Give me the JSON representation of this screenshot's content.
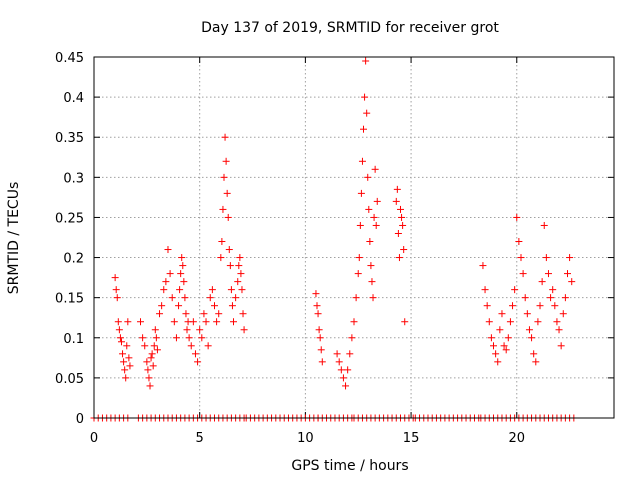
{
  "chart_data": {
    "type": "scatter",
    "title": "Day 137 of 2019, SRMTID for receiver grot",
    "xlabel": "GPS time / hours",
    "ylabel": "SRMTID / TECUs",
    "xlim": [
      0,
      24.6
    ],
    "ylim": [
      0,
      0.45
    ],
    "xticks": [
      0,
      5,
      10,
      15,
      20
    ],
    "yticks": [
      0,
      0.05,
      0.1,
      0.15,
      0.2,
      0.25,
      0.3,
      0.35,
      0.4,
      0.45
    ],
    "xtick_labels": [
      "0",
      "5",
      "10",
      "15",
      "20"
    ],
    "ytick_labels": [
      "0",
      "0.05",
      "0.1",
      "0.15",
      "0.2",
      "0.25",
      "0.3",
      "0.35",
      "0.4",
      "0.45"
    ],
    "grid": true,
    "marker": "+",
    "marker_color": "#ff0000",
    "series": [
      {
        "name": "SRMTID",
        "x": [
          1.0,
          1.05,
          1.1,
          1.15,
          1.2,
          1.25,
          1.3,
          1.35,
          1.4,
          1.45,
          1.5,
          1.55,
          1.6,
          1.65,
          1.7,
          2.2,
          2.3,
          2.4,
          2.5,
          2.55,
          2.6,
          2.65,
          2.7,
          2.75,
          2.8,
          2.85,
          2.9,
          2.95,
          3.0,
          3.1,
          3.2,
          3.3,
          3.4,
          3.5,
          3.6,
          3.7,
          3.8,
          3.9,
          4.0,
          4.05,
          4.1,
          4.15,
          4.2,
          4.25,
          4.3,
          4.35,
          4.4,
          4.45,
          4.5,
          4.6,
          4.7,
          4.8,
          4.9,
          5.0,
          5.1,
          5.2,
          5.3,
          5.4,
          5.5,
          5.6,
          5.7,
          5.8,
          5.9,
          6.0,
          6.05,
          6.1,
          6.15,
          6.2,
          6.25,
          6.3,
          6.35,
          6.4,
          6.45,
          6.5,
          6.55,
          6.6,
          6.7,
          6.8,
          6.85,
          6.9,
          6.95,
          7.0,
          7.05,
          7.1,
          10.5,
          10.55,
          10.6,
          10.65,
          10.7,
          10.75,
          10.8,
          11.5,
          11.6,
          11.7,
          11.8,
          11.9,
          12.0,
          12.1,
          12.2,
          12.3,
          12.4,
          12.5,
          12.55,
          12.6,
          12.65,
          12.7,
          12.75,
          12.8,
          12.85,
          12.9,
          12.95,
          13.0,
          13.05,
          13.1,
          13.15,
          13.2,
          13.25,
          13.3,
          13.35,
          13.4,
          14.3,
          14.35,
          14.4,
          14.45,
          14.5,
          14.55,
          14.6,
          14.65,
          14.7,
          18.4,
          18.5,
          18.6,
          18.7,
          18.8,
          18.9,
          19.0,
          19.1,
          19.2,
          19.3,
          19.4,
          19.5,
          19.6,
          19.7,
          19.8,
          19.9,
          20.0,
          20.1,
          20.2,
          20.3,
          20.4,
          20.5,
          20.6,
          20.7,
          20.8,
          20.9,
          21.0,
          21.1,
          21.2,
          21.3,
          21.4,
          21.5,
          21.6,
          21.7,
          21.8,
          21.9,
          22.0,
          22.1,
          22.2,
          22.3,
          22.4,
          22.5,
          22.6
        ],
        "y": [
          0.175,
          0.16,
          0.15,
          0.12,
          0.11,
          0.1,
          0.095,
          0.08,
          0.07,
          0.06,
          0.05,
          0.09,
          0.12,
          0.075,
          0.065,
          0.12,
          0.1,
          0.09,
          0.07,
          0.06,
          0.05,
          0.04,
          0.075,
          0.08,
          0.065,
          0.09,
          0.11,
          0.1,
          0.085,
          0.13,
          0.14,
          0.16,
          0.17,
          0.21,
          0.18,
          0.15,
          0.12,
          0.1,
          0.14,
          0.16,
          0.18,
          0.2,
          0.19,
          0.17,
          0.15,
          0.13,
          0.11,
          0.12,
          0.1,
          0.09,
          0.12,
          0.08,
          0.07,
          0.11,
          0.1,
          0.13,
          0.12,
          0.09,
          0.15,
          0.16,
          0.14,
          0.12,
          0.13,
          0.2,
          0.22,
          0.26,
          0.3,
          0.35,
          0.32,
          0.28,
          0.25,
          0.21,
          0.19,
          0.16,
          0.14,
          0.12,
          0.15,
          0.17,
          0.19,
          0.2,
          0.18,
          0.16,
          0.13,
          0.11,
          0.155,
          0.14,
          0.13,
          0.11,
          0.1,
          0.085,
          0.07,
          0.08,
          0.07,
          0.06,
          0.05,
          0.04,
          0.06,
          0.08,
          0.1,
          0.12,
          0.15,
          0.18,
          0.2,
          0.24,
          0.28,
          0.32,
          0.36,
          0.4,
          0.445,
          0.38,
          0.3,
          0.26,
          0.22,
          0.19,
          0.17,
          0.15,
          0.25,
          0.31,
          0.24,
          0.27,
          0.27,
          0.285,
          0.23,
          0.2,
          0.26,
          0.25,
          0.24,
          0.21,
          0.12,
          0.19,
          0.16,
          0.14,
          0.12,
          0.1,
          0.09,
          0.08,
          0.07,
          0.11,
          0.13,
          0.09,
          0.085,
          0.1,
          0.12,
          0.14,
          0.16,
          0.25,
          0.22,
          0.2,
          0.18,
          0.15,
          0.13,
          0.11,
          0.1,
          0.08,
          0.07,
          0.12,
          0.14,
          0.17,
          0.24,
          0.2,
          0.18,
          0.15,
          0.16,
          0.14,
          0.12,
          0.11,
          0.09,
          0.13,
          0.15,
          0.18,
          0.2,
          0.17
        ],
        "zero_band": {
          "y": 0,
          "ranges": [
            [
              0.0,
              1.7
            ],
            [
              2.1,
              7.2
            ],
            [
              7.2,
              10.6
            ],
            [
              10.6,
              12.3
            ],
            [
              12.3,
              15.2
            ],
            [
              15.2,
              18.3
            ],
            [
              18.3,
              22.8
            ]
          ],
          "stride": 0.2
        }
      }
    ]
  }
}
